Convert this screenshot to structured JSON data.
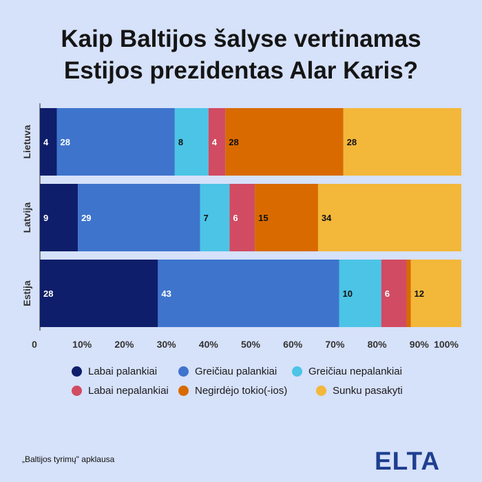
{
  "title_lines": [
    "Kaip Baltijos šalyse vertinamas",
    "Estijos prezidentas Alar Karis?"
  ],
  "colors": {
    "background": "#d6e1fa",
    "series": [
      "#0e1e6a",
      "#3e74cc",
      "#4bc4e6",
      "#d14b62",
      "#d86a00",
      "#f3b73a"
    ]
  },
  "chart_data": {
    "type": "bar",
    "orientation": "horizontal",
    "stacked": true,
    "categories": [
      "Lietuva",
      "Latvija",
      "Estija"
    ],
    "series": [
      {
        "name": "Labai palankiai",
        "values": [
          4,
          9,
          28
        ]
      },
      {
        "name": "Greičiau palankiai",
        "values": [
          28,
          29,
          43
        ]
      },
      {
        "name": "Greičiau nepalankiai",
        "values": [
          8,
          7,
          10
        ]
      },
      {
        "name": "Labai nepalankiai",
        "values": [
          4,
          6,
          6
        ]
      },
      {
        "name": "Negirdėjo tokio(-ios)",
        "values": [
          28,
          15,
          1
        ]
      },
      {
        "name": "Sunku pasakyti",
        "values": [
          28,
          34,
          12
        ]
      }
    ],
    "xlim": [
      0,
      100
    ],
    "x_ticks": [
      "0",
      "10%",
      "20%",
      "30%",
      "40%",
      "50%",
      "60%",
      "70%",
      "80%",
      "90%",
      "100%"
    ],
    "legend_position": "bottom"
  },
  "footer": {
    "source": "„Baltijos tyrimų\" apklausa",
    "logo": "ELTA"
  }
}
